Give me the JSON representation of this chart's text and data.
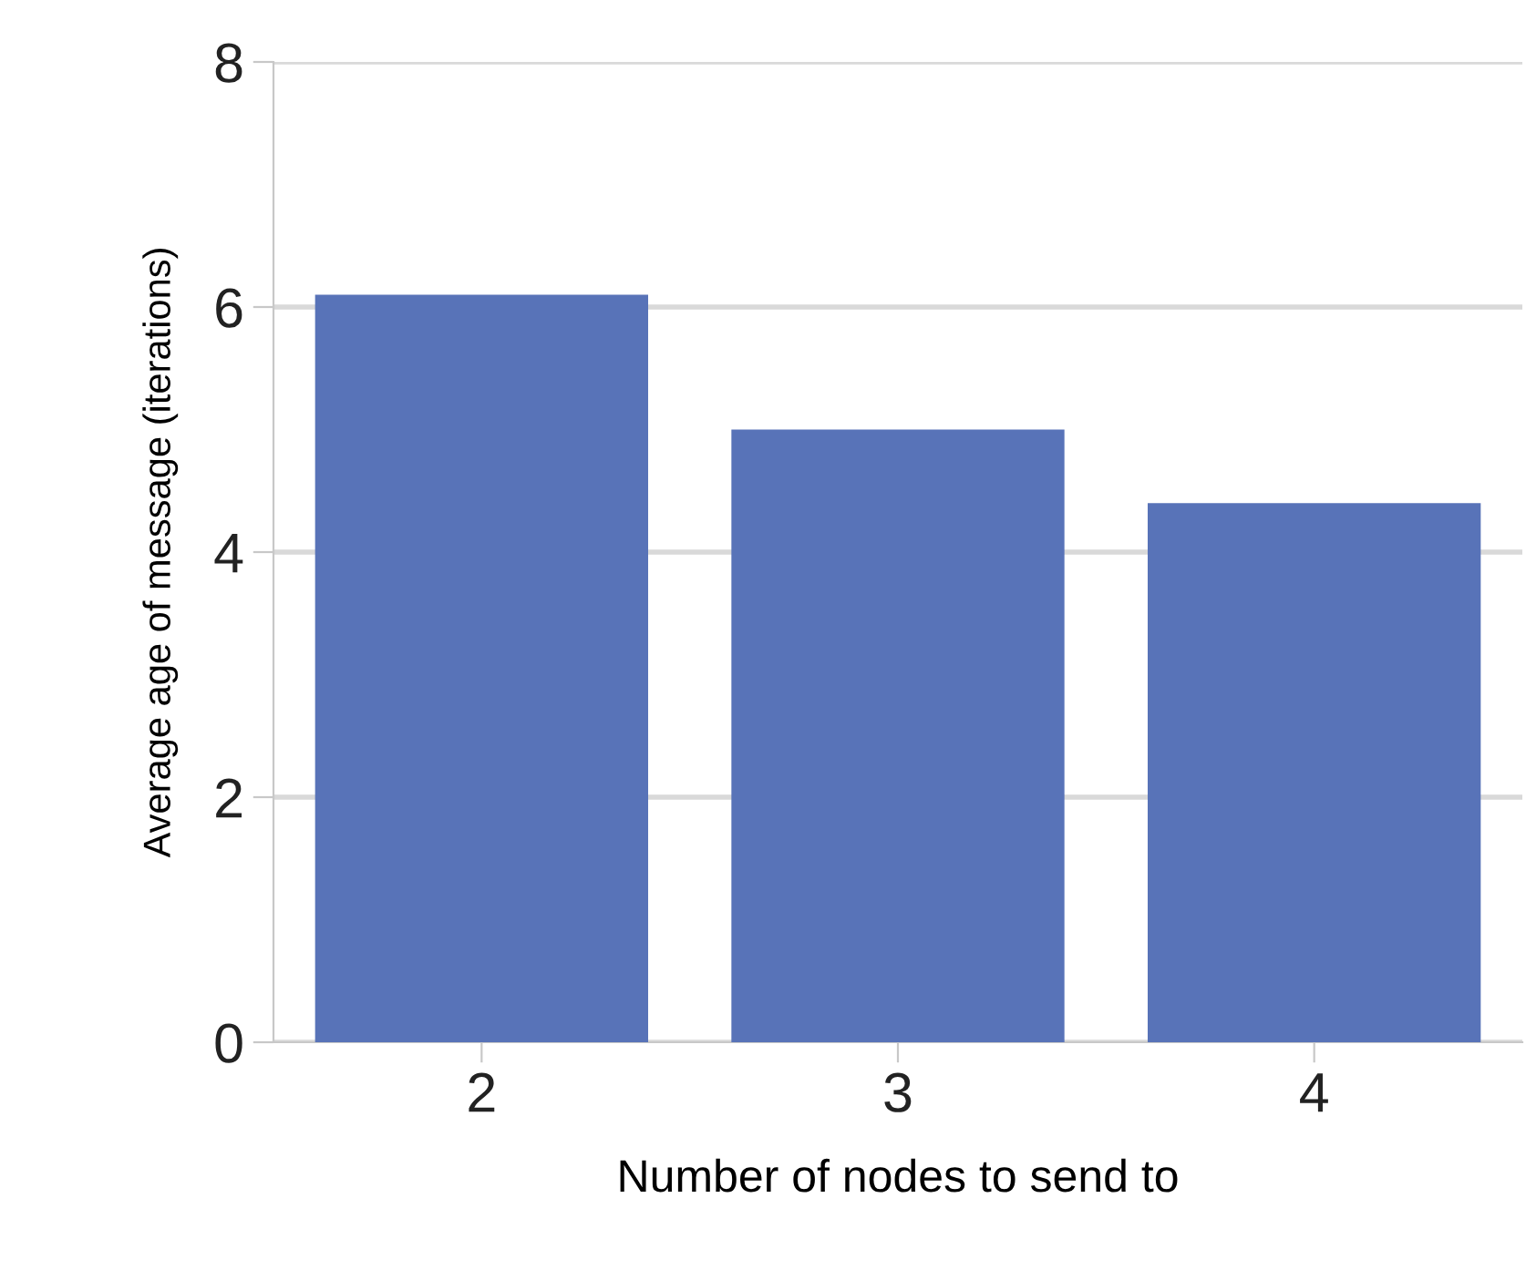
{
  "chart_data": {
    "type": "bar",
    "xlabel": "Number of nodes to send to",
    "ylabel": "Average age of message (iterations)",
    "categories": [
      "2",
      "3",
      "4"
    ],
    "values": [
      6.1,
      5.0,
      4.4
    ],
    "color": "#5873b8",
    "ylim": [
      0,
      8
    ],
    "yticks": [
      0,
      2,
      4,
      6,
      8
    ],
    "grid": "y"
  }
}
